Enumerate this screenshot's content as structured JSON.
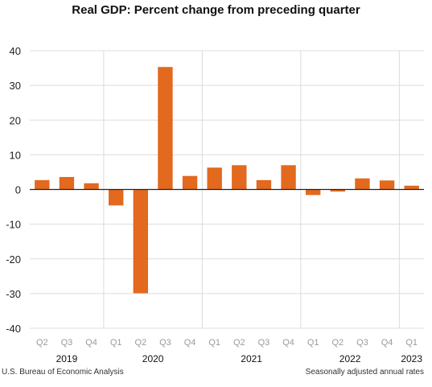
{
  "chart_data": {
    "type": "bar",
    "title": "Real GDP:  Percent change from preceding quarter",
    "categories": [
      "Q2",
      "Q3",
      "Q4",
      "Q1",
      "Q2",
      "Q3",
      "Q4",
      "Q1",
      "Q2",
      "Q3",
      "Q4",
      "Q1",
      "Q2",
      "Q3",
      "Q4",
      "Q1"
    ],
    "years": [
      {
        "label": "2019",
        "start": 0,
        "end": 2
      },
      {
        "label": "2020",
        "start": 3,
        "end": 6
      },
      {
        "label": "2021",
        "start": 7,
        "end": 10
      },
      {
        "label": "2022",
        "start": 11,
        "end": 14
      },
      {
        "label": "2023",
        "start": 15,
        "end": 15
      }
    ],
    "series": [
      {
        "values": [
          2.7,
          3.6,
          1.8,
          -4.6,
          -29.9,
          35.3,
          3.9,
          6.3,
          7.0,
          2.7,
          7.0,
          -1.6,
          -0.6,
          3.2,
          2.6,
          1.1
        ]
      }
    ],
    "ylim": [
      -40,
      40
    ],
    "yticks": [
      "-40",
      "-30",
      "-20",
      "-10",
      "0",
      "10",
      "20",
      "30",
      "40"
    ],
    "xlabel": "",
    "ylabel": "",
    "grid": true,
    "year_separators": true,
    "bar_color": "#e2691e",
    "gridline_color": "#dcdcdc",
    "axis_color": "#222222"
  },
  "footer": {
    "source": "U.S. Bureau of Economic Analysis",
    "note": "Seasonally adjusted annual rates"
  }
}
